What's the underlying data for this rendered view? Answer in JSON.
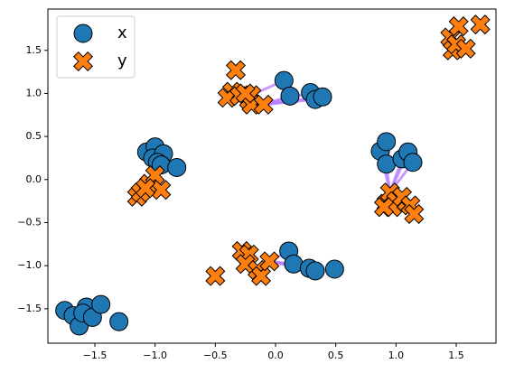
{
  "chart_data": {
    "type": "scatter",
    "series": [
      {
        "name": "x",
        "marker": "circle",
        "color": "#1f77b4",
        "x": [
          0.07,
          0.29,
          0.33,
          0.39,
          0.12,
          -1.07,
          -1.0,
          -1.02,
          -0.93,
          -0.98,
          -0.95,
          -0.82,
          0.87,
          0.92,
          0.92,
          1.05,
          1.1,
          1.14,
          0.11,
          0.15,
          0.28,
          0.33,
          0.49,
          -1.75,
          -1.68,
          -1.63,
          -1.57,
          -1.6,
          -1.52,
          -1.45,
          -1.3
        ],
        "values": [
          1.15,
          1.01,
          0.93,
          0.96,
          0.97,
          0.32,
          0.38,
          0.25,
          0.3,
          0.2,
          0.17,
          0.14,
          0.33,
          0.44,
          0.18,
          0.24,
          0.32,
          0.2,
          -0.83,
          -0.98,
          -1.03,
          -1.06,
          -1.04,
          -1.52,
          -1.58,
          -1.7,
          -1.48,
          -1.55,
          -1.6,
          -1.45,
          -1.65
        ]
      },
      {
        "name": "y",
        "marker": "x",
        "color": "#ff7f0e",
        "x": [
          -0.33,
          -0.36,
          -0.4,
          -0.3,
          -0.22,
          -0.2,
          -0.2,
          -0.1,
          -0.25,
          -1.15,
          -1.12,
          -1.05,
          -1.0,
          -0.95,
          -1.08,
          0.92,
          0.95,
          1.0,
          0.97,
          1.05,
          1.12,
          1.15,
          0.9,
          -0.5,
          -0.28,
          -0.22,
          -0.25,
          -0.15,
          -0.12,
          -0.05,
          1.45,
          1.47,
          1.5,
          1.52,
          1.58,
          1.7
        ],
        "values": [
          1.27,
          1.02,
          0.95,
          0.97,
          0.92,
          0.98,
          0.87,
          0.87,
          1.0,
          -0.2,
          -0.15,
          -0.05,
          0.05,
          -0.12,
          -0.1,
          -0.28,
          -0.15,
          -0.25,
          -0.32,
          -0.2,
          -0.3,
          -0.4,
          -0.32,
          -1.12,
          -0.83,
          -0.87,
          -0.98,
          -1.05,
          -1.12,
          -0.95,
          1.65,
          1.5,
          1.57,
          1.78,
          1.52,
          1.8
        ]
      }
    ],
    "xlim": [
      -1.89,
      1.83
    ],
    "ylim": [
      -1.9,
      1.98
    ],
    "xticks": [
      {
        "value": -1.5,
        "label": "−1.5"
      },
      {
        "value": -1.0,
        "label": "−1.0"
      },
      {
        "value": -0.5,
        "label": "−0.5"
      },
      {
        "value": 0,
        "label": "0.0"
      },
      {
        "value": 0.5,
        "label": "0.5"
      },
      {
        "value": 1.0,
        "label": "1.0"
      },
      {
        "value": 1.5,
        "label": "1.5"
      }
    ],
    "yticks": [
      {
        "value": -1.5,
        "label": "−1.5"
      },
      {
        "value": -1.0,
        "label": "−1.0"
      },
      {
        "value": -0.5,
        "label": "−0.5"
      },
      {
        "value": 0,
        "label": "0.0"
      },
      {
        "value": 0.5,
        "label": "0.5"
      },
      {
        "value": 1.0,
        "label": "1.0"
      },
      {
        "value": 1.5,
        "label": "1.5"
      }
    ],
    "grid": false,
    "legend": "upper left",
    "link_color": "#b57bff"
  }
}
